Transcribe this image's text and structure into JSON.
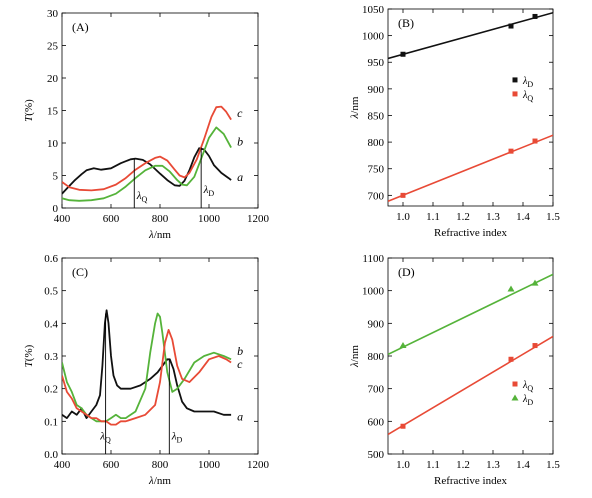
{
  "chart_data": [
    {
      "panel": "(A)",
      "type": "line",
      "xlabel": "λ/nm",
      "ylabel": "T(%)",
      "xlim": [
        400,
        1200
      ],
      "ylim": [
        0,
        30
      ],
      "xticks": [
        400,
        600,
        800,
        1000,
        1200
      ],
      "yticks": [
        0,
        5,
        10,
        15,
        20,
        25,
        30
      ],
      "series": [
        {
          "name": "a",
          "color": "#111111",
          "x": [
            400,
            420,
            450,
            480,
            500,
            530,
            560,
            600,
            640,
            680,
            700,
            730,
            760,
            800,
            830,
            860,
            880,
            900,
            920,
            940,
            960,
            980,
            1000,
            1020,
            1050,
            1080,
            1090
          ],
          "y": [
            2.2,
            3.0,
            4.2,
            5.2,
            5.8,
            6.1,
            5.9,
            6.1,
            6.9,
            7.5,
            7.6,
            7.4,
            6.7,
            5.3,
            4.3,
            3.5,
            3.4,
            4.2,
            5.8,
            7.8,
            9.2,
            9.0,
            8.0,
            6.6,
            5.4,
            4.6,
            4.3
          ]
        },
        {
          "name": "b",
          "color": "#55b33a",
          "x": [
            400,
            430,
            470,
            520,
            570,
            620,
            660,
            700,
            740,
            780,
            810,
            840,
            870,
            890,
            910,
            940,
            970,
            1000,
            1030,
            1060,
            1090
          ],
          "y": [
            1.5,
            1.2,
            1.1,
            1.2,
            1.5,
            2.2,
            3.3,
            4.6,
            5.8,
            6.5,
            6.5,
            5.6,
            4.3,
            3.6,
            3.5,
            4.8,
            7.8,
            10.8,
            12.4,
            11.4,
            9.3
          ]
        },
        {
          "name": "c",
          "color": "#e84a36",
          "x": [
            400,
            430,
            470,
            520,
            570,
            620,
            660,
            700,
            740,
            780,
            800,
            830,
            860,
            880,
            900,
            920,
            950,
            980,
            1010,
            1030,
            1050,
            1070,
            1090
          ],
          "y": [
            4.0,
            3.2,
            2.8,
            2.7,
            2.9,
            3.6,
            4.6,
            5.9,
            6.9,
            7.7,
            7.9,
            7.3,
            5.9,
            5.0,
            4.7,
            5.4,
            7.5,
            10.6,
            14.0,
            15.5,
            15.6,
            14.8,
            13.6
          ]
        }
      ],
      "curve_labels": [
        {
          "text": "a",
          "x": 1115,
          "y": 4.8
        },
        {
          "text": "b",
          "x": 1115,
          "y": 10.2
        },
        {
          "text": "c",
          "x": 1115,
          "y": 14.6
        }
      ],
      "markers": [
        {
          "label": "λQ",
          "x": 695,
          "y_top": 7.6,
          "label_x": 705,
          "label_y": 1.4
        },
        {
          "label": "λD",
          "x": 968,
          "y_top": 9.3,
          "label_x": 978,
          "label_y": 2.3
        }
      ]
    },
    {
      "panel": "(B)",
      "type": "scatter",
      "xlabel": "Refractive index",
      "ylabel": "λ/nm",
      "xlim": [
        0.95,
        1.5
      ],
      "ylim": [
        680,
        1050
      ],
      "xticks": [
        1.0,
        1.1,
        1.2,
        1.3,
        1.4,
        1.5
      ],
      "yticks": [
        700,
        750,
        800,
        850,
        900,
        950,
        1000,
        1050
      ],
      "legend_position": "right",
      "series": [
        {
          "name": "λD",
          "color": "#111111",
          "marker": "square",
          "x": [
            1.0,
            1.36,
            1.44
          ],
          "y": [
            965,
            1018,
            1036
          ],
          "fit": {
            "x": [
              0.95,
              1.5
            ],
            "y": [
              957,
              1043
            ]
          }
        },
        {
          "name": "λQ",
          "color": "#e84a36",
          "marker": "square",
          "x": [
            1.0,
            1.36,
            1.44
          ],
          "y": [
            700,
            783,
            802
          ],
          "fit": {
            "x": [
              0.95,
              1.5
            ],
            "y": [
              689,
              813
            ]
          }
        }
      ]
    },
    {
      "panel": "(C)",
      "type": "line",
      "xlabel": "λ/nm",
      "ylabel": "T(%)",
      "xlim": [
        400,
        1200
      ],
      "ylim": [
        0,
        0.6
      ],
      "xticks": [
        400,
        600,
        800,
        1000,
        1200
      ],
      "yticks": [
        0,
        0.1,
        0.2,
        0.3,
        0.4,
        0.5,
        0.6
      ],
      "series": [
        {
          "name": "a",
          "color": "#111111",
          "x": [
            400,
            420,
            440,
            460,
            480,
            500,
            520,
            540,
            555,
            565,
            575,
            582,
            590,
            600,
            610,
            625,
            640,
            680,
            720,
            760,
            790,
            810,
            830,
            840,
            855,
            870,
            890,
            910,
            940,
            980,
            1020,
            1060,
            1090
          ],
          "y": [
            0.12,
            0.11,
            0.13,
            0.12,
            0.14,
            0.11,
            0.13,
            0.15,
            0.18,
            0.27,
            0.4,
            0.44,
            0.4,
            0.3,
            0.24,
            0.21,
            0.2,
            0.2,
            0.21,
            0.23,
            0.25,
            0.27,
            0.29,
            0.29,
            0.26,
            0.21,
            0.16,
            0.14,
            0.13,
            0.13,
            0.13,
            0.12,
            0.12
          ]
        },
        {
          "name": "b",
          "color": "#55b33a",
          "x": [
            400,
            420,
            440,
            460,
            480,
            500,
            520,
            540,
            560,
            580,
            600,
            620,
            640,
            660,
            700,
            740,
            760,
            780,
            790,
            800,
            810,
            830,
            850,
            870,
            900,
            940,
            980,
            1020,
            1060,
            1090
          ],
          "y": [
            0.28,
            0.22,
            0.19,
            0.15,
            0.14,
            0.12,
            0.11,
            0.1,
            0.1,
            0.1,
            0.11,
            0.12,
            0.11,
            0.11,
            0.13,
            0.2,
            0.31,
            0.4,
            0.43,
            0.42,
            0.37,
            0.25,
            0.19,
            0.2,
            0.23,
            0.28,
            0.3,
            0.31,
            0.3,
            0.29
          ]
        },
        {
          "name": "c",
          "color": "#e84a36",
          "x": [
            400,
            420,
            440,
            460,
            480,
            500,
            520,
            540,
            560,
            580,
            600,
            620,
            640,
            660,
            700,
            740,
            780,
            800,
            820,
            835,
            850,
            870,
            890,
            920,
            960,
            1000,
            1040,
            1070,
            1090
          ],
          "y": [
            0.24,
            0.19,
            0.17,
            0.14,
            0.13,
            0.12,
            0.11,
            0.11,
            0.1,
            0.1,
            0.09,
            0.09,
            0.1,
            0.1,
            0.11,
            0.12,
            0.15,
            0.22,
            0.34,
            0.38,
            0.35,
            0.27,
            0.23,
            0.22,
            0.25,
            0.29,
            0.3,
            0.29,
            0.28
          ]
        }
      ],
      "curve_labels": [
        {
          "text": "a",
          "x": 1115,
          "y": 0.115
        },
        {
          "text": "b",
          "x": 1115,
          "y": 0.315
        },
        {
          "text": "c",
          "x": 1115,
          "y": 0.275
        }
      ],
      "markers": [
        {
          "label": "λQ",
          "x": 578,
          "y_top": 0.43,
          "label_x": 556,
          "label_y": 0.045
        },
        {
          "label": "λD",
          "x": 838,
          "y_top": 0.29,
          "label_x": 848,
          "label_y": 0.045
        }
      ]
    },
    {
      "panel": "(D)",
      "type": "scatter",
      "xlabel": "Refractive index",
      "ylabel": "λ/nm",
      "xlim": [
        0.95,
        1.5
      ],
      "ylim": [
        500,
        1100
      ],
      "xticks": [
        1.0,
        1.1,
        1.2,
        1.3,
        1.4,
        1.5
      ],
      "yticks": [
        500,
        600,
        700,
        800,
        900,
        1000,
        1100
      ],
      "legend_position": "bottom-right",
      "series": [
        {
          "name": "λQ",
          "color": "#e84a36",
          "marker": "square",
          "x": [
            1.0,
            1.36,
            1.44
          ],
          "y": [
            585,
            790,
            832
          ],
          "fit": {
            "x": [
              0.95,
              1.5
            ],
            "y": [
              560,
              860
            ]
          }
        },
        {
          "name": "λD",
          "color": "#55b33a",
          "marker": "triangle",
          "x": [
            1.0,
            1.36,
            1.44
          ],
          "y": [
            832,
            1005,
            1023
          ],
          "fit": {
            "x": [
              0.95,
              1.5
            ],
            "y": [
              805,
              1050
            ]
          }
        }
      ]
    }
  ]
}
